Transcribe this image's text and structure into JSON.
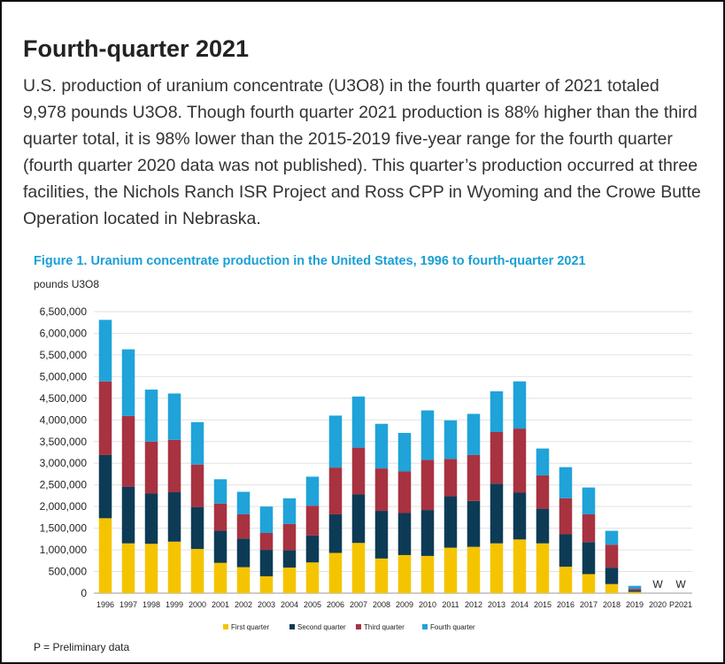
{
  "article": {
    "heading": "Fourth-quarter 2021",
    "paragraph": "U.S. production of uranium concentrate (U3O8) in the fourth quarter of 2021 totaled 9,978 pounds U3O8. Though fourth quarter 2021 production is 88% higher than the third quarter total, it is 98% lower than the 2015-2019 five-year range for the fourth quarter (fourth quarter 2020 data was not published). This quarter’s production occurred at three facilities, the Nichols Ranch ISR Project and Ross CPP in Wyoming and the Crowe Butte Operation located in Nebraska.",
    "footnote": "P = Preliminary data"
  },
  "chart_data": {
    "type": "bar",
    "stacked": true,
    "title": "Figure 1. Uranium concentrate production in the United States, 1996 to fourth-quarter 2021",
    "ylabel": "pounds U3O8",
    "ylim": [
      0,
      6500000
    ],
    "yticks": [
      0,
      500000,
      1000000,
      1500000,
      2000000,
      2500000,
      3000000,
      3500000,
      4000000,
      4500000,
      5000000,
      5500000,
      6000000,
      6500000
    ],
    "ytick_labels": [
      "0",
      "500,000",
      "1,000,000",
      "1,500,000",
      "2,000,000",
      "2,500,000",
      "3,000,000",
      "3,500,000",
      "4,000,000",
      "4,500,000",
      "5,000,000",
      "5,500,000",
      "6,000,000",
      "6,500,000"
    ],
    "grid": true,
    "legend_position": "bottom",
    "categories": [
      "1996",
      "1997",
      "1998",
      "1999",
      "2000",
      "2001",
      "2002",
      "2003",
      "2004",
      "2005",
      "2006",
      "2007",
      "2008",
      "2009",
      "2010",
      "2011",
      "2012",
      "2013",
      "2014",
      "2015",
      "2016",
      "2017",
      "2018",
      "2019",
      "2020",
      "P2021"
    ],
    "withheld_label": "W",
    "withheld_categories": [
      "2020",
      "P2021"
    ],
    "series": [
      {
        "name": "First quarter",
        "color": "#f5c400",
        "values": [
          1730000,
          1150000,
          1140000,
          1190000,
          1020000,
          700000,
          600000,
          390000,
          590000,
          710000,
          930000,
          1160000,
          800000,
          880000,
          860000,
          1050000,
          1070000,
          1150000,
          1240000,
          1150000,
          610000,
          440000,
          210000,
          30000,
          null,
          null
        ]
      },
      {
        "name": "Second quarter",
        "color": "#0d3b56",
        "values": [
          1460000,
          1310000,
          1160000,
          1140000,
          970000,
          740000,
          660000,
          610000,
          400000,
          620000,
          890000,
          1120000,
          1100000,
          970000,
          1060000,
          1190000,
          1060000,
          1380000,
          1080000,
          800000,
          750000,
          740000,
          380000,
          30000,
          null,
          null
        ]
      },
      {
        "name": "Third quarter",
        "color": "#a83240",
        "values": [
          1700000,
          1630000,
          1200000,
          1210000,
          980000,
          630000,
          560000,
          390000,
          610000,
          690000,
          1080000,
          1080000,
          980000,
          960000,
          1160000,
          860000,
          1060000,
          1190000,
          1480000,
          770000,
          830000,
          640000,
          530000,
          40000,
          null,
          null
        ]
      },
      {
        "name": "Fourth quarter",
        "color": "#1fa3d9",
        "values": [
          1420000,
          1540000,
          1200000,
          1070000,
          980000,
          560000,
          520000,
          610000,
          590000,
          670000,
          1200000,
          1180000,
          1030000,
          890000,
          1140000,
          890000,
          950000,
          940000,
          1090000,
          620000,
          720000,
          620000,
          320000,
          70000,
          null,
          null
        ]
      }
    ]
  }
}
